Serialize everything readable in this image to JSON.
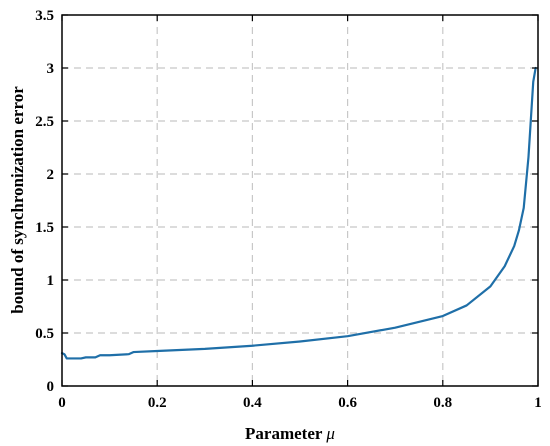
{
  "chart_data": {
    "type": "line",
    "xlabel": "Parameter",
    "xlabel_symbol": "μ",
    "ylabel": "bound of synchronization error",
    "xlim": [
      0,
      1
    ],
    "ylim": [
      0,
      3.5
    ],
    "x_ticks": [
      "0",
      "0.2",
      "0.4",
      "0.6",
      "0.8",
      "1"
    ],
    "y_ticks": [
      "0",
      "0.5",
      "1",
      "1.5",
      "2",
      "2.5",
      "3",
      "3.5"
    ],
    "x_tick_values": [
      0,
      0.2,
      0.4,
      0.6,
      0.8,
      1
    ],
    "y_tick_values": [
      0,
      0.5,
      1,
      1.5,
      2,
      2.5,
      3,
      3.5
    ],
    "grid": true,
    "series_color": "#1f6fa8",
    "series": [
      {
        "x": [
          0.0,
          0.005,
          0.01,
          0.02,
          0.04,
          0.05,
          0.07,
          0.08,
          0.1,
          0.14,
          0.15,
          0.2,
          0.3,
          0.4,
          0.5,
          0.6,
          0.7,
          0.8,
          0.85,
          0.9,
          0.93,
          0.95,
          0.96,
          0.97,
          0.98,
          0.99,
          0.995
        ],
        "y": [
          0.31,
          0.3,
          0.26,
          0.26,
          0.26,
          0.27,
          0.27,
          0.29,
          0.29,
          0.3,
          0.32,
          0.33,
          0.35,
          0.38,
          0.42,
          0.47,
          0.55,
          0.66,
          0.76,
          0.94,
          1.13,
          1.32,
          1.47,
          1.68,
          2.16,
          2.87,
          3.0
        ]
      }
    ]
  }
}
